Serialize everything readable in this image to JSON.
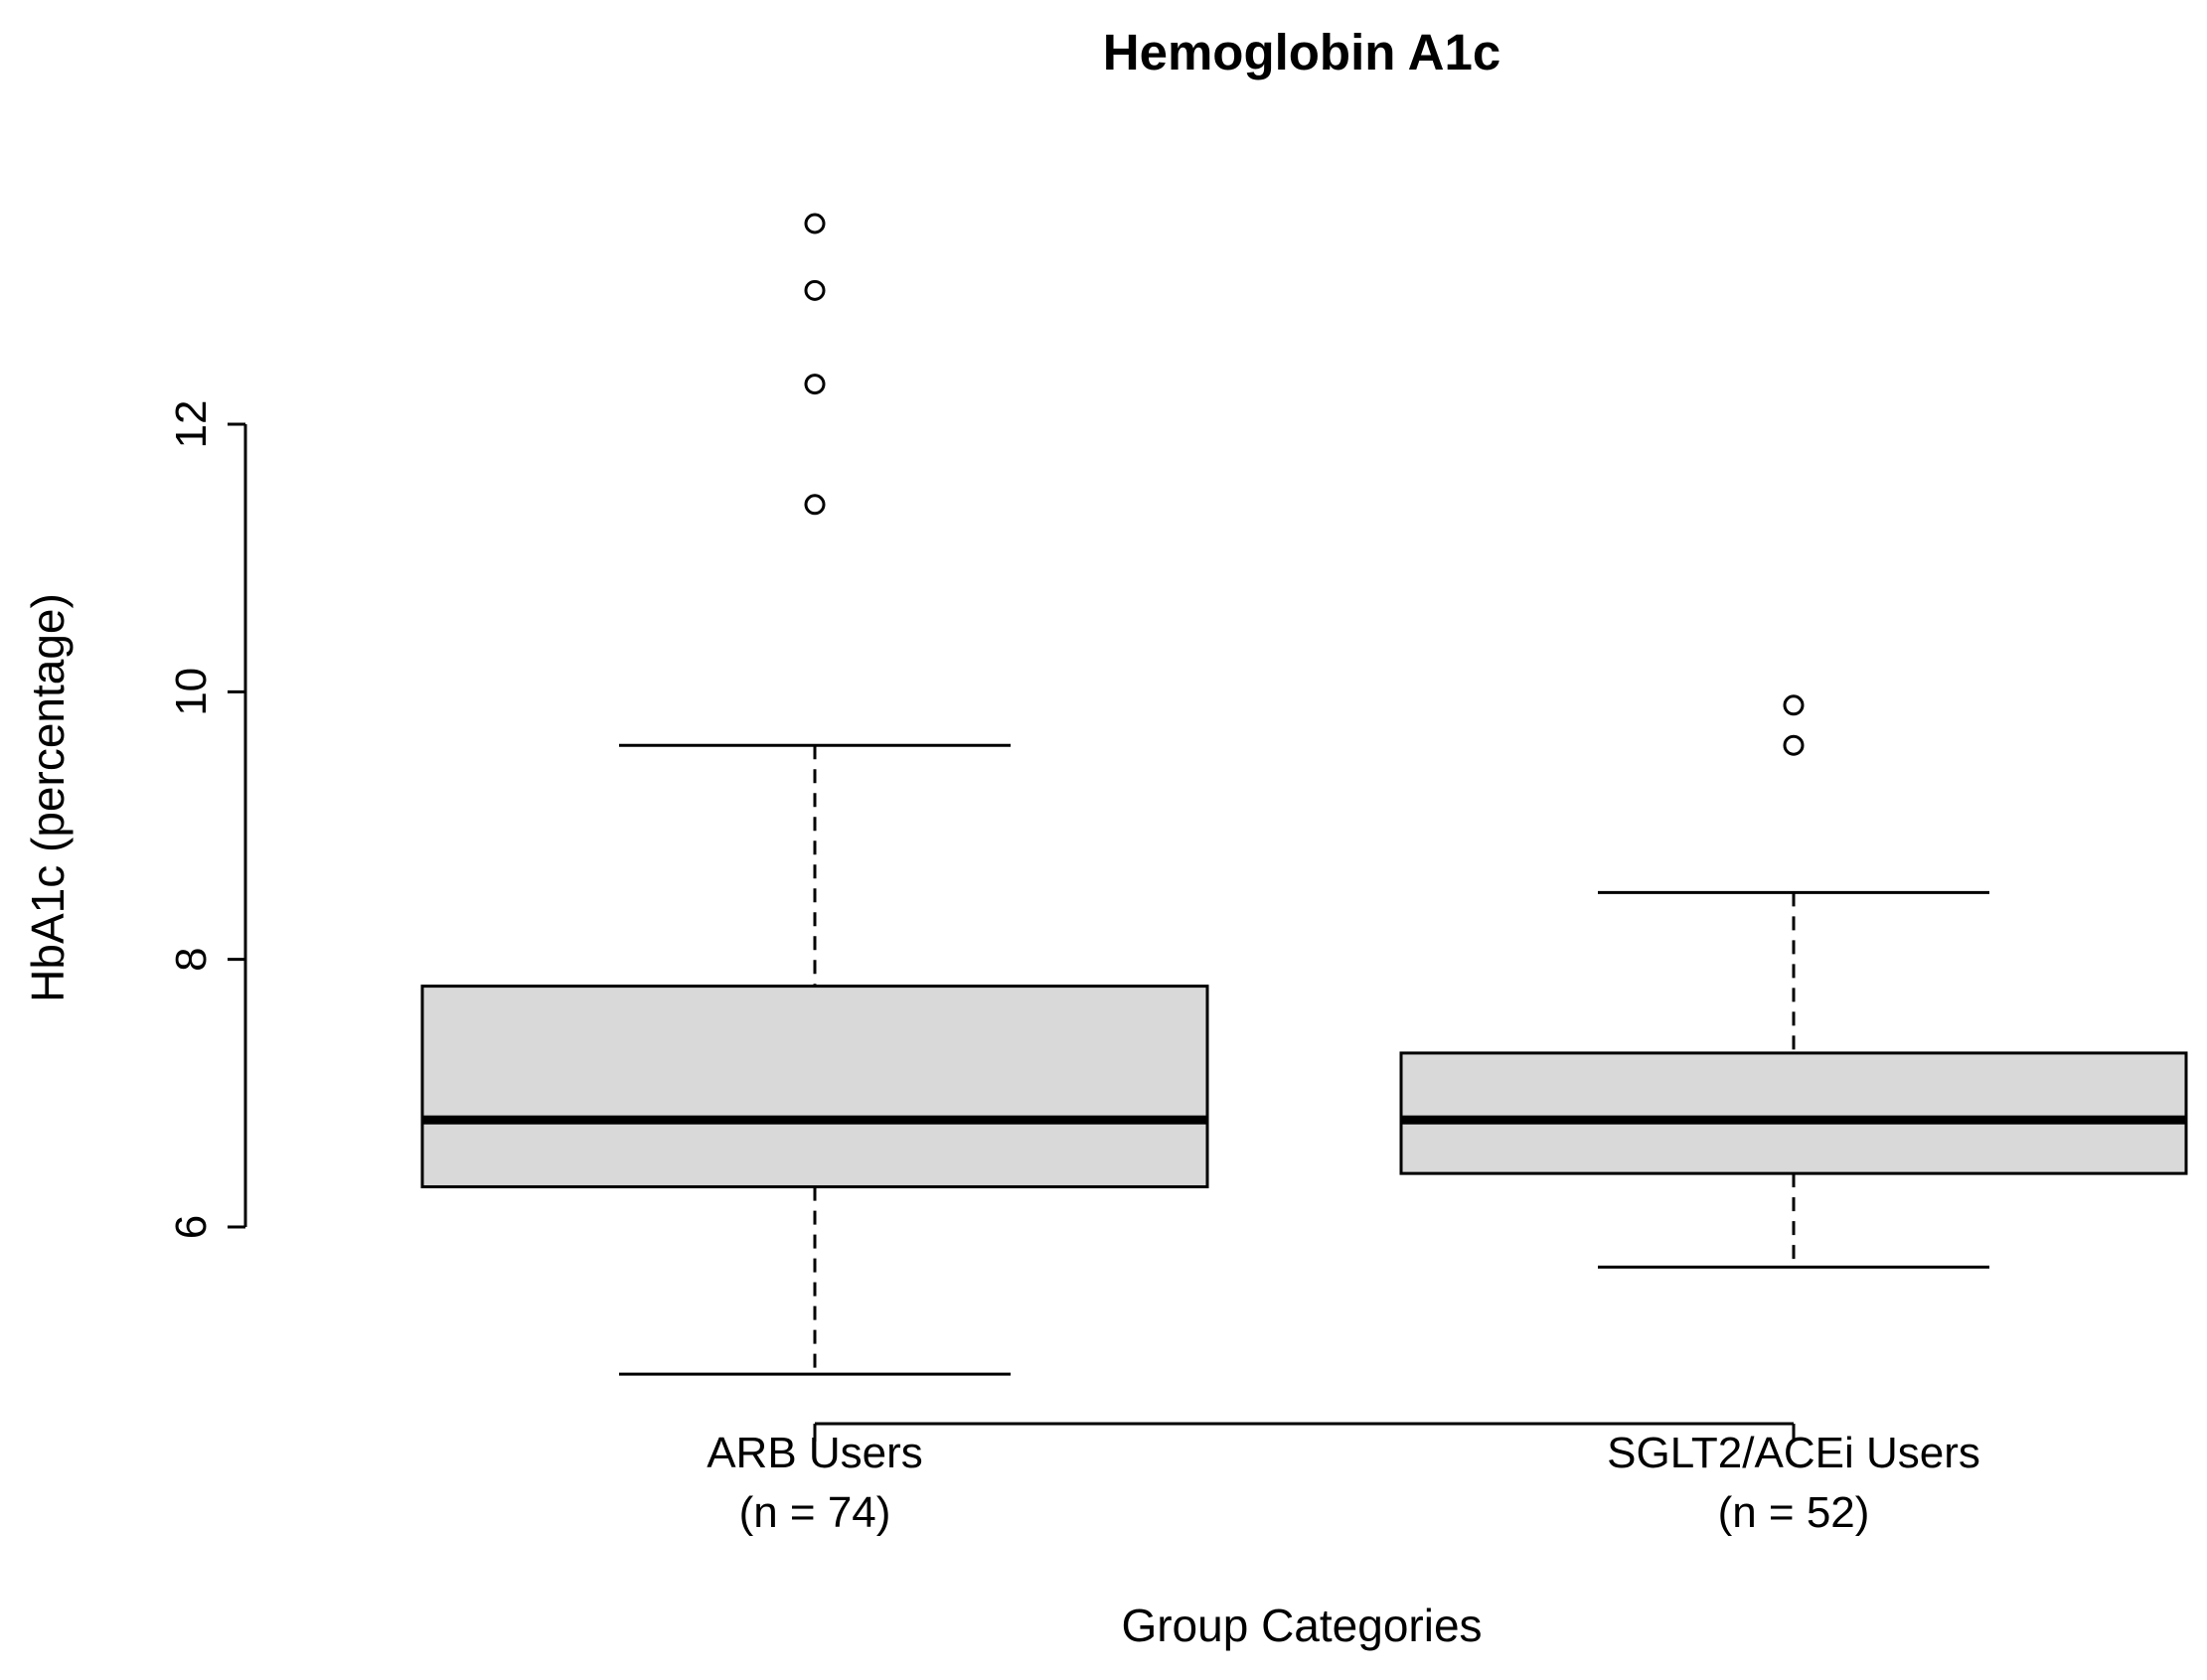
{
  "chart_data": {
    "type": "boxplot",
    "title": "Hemoglobin A1c",
    "xlabel": "Group Categories",
    "ylabel": "HbA1c (percentage)",
    "yticks": [
      6,
      8,
      10,
      12
    ],
    "ylim": [
      4.7,
      13.9
    ],
    "groups": [
      {
        "label_line1": "ARB Users",
        "label_line2": "(n = 74)",
        "whisker_low": 4.9,
        "q1": 6.3,
        "median": 6.8,
        "q3": 7.8,
        "whisker_high": 9.6,
        "outliers": [
          11.4,
          12.3,
          13.0,
          13.5
        ]
      },
      {
        "label_line1": "SGLT2/ACEi Users",
        "label_line2": "(n = 52)",
        "whisker_low": 5.7,
        "q1": 6.4,
        "median": 6.8,
        "q3": 7.3,
        "whisker_high": 8.5,
        "outliers": [
          9.6,
          9.9
        ]
      }
    ],
    "box_fill": "#d9d9d9",
    "line_color": "#000000",
    "grid": false,
    "legend": false
  }
}
